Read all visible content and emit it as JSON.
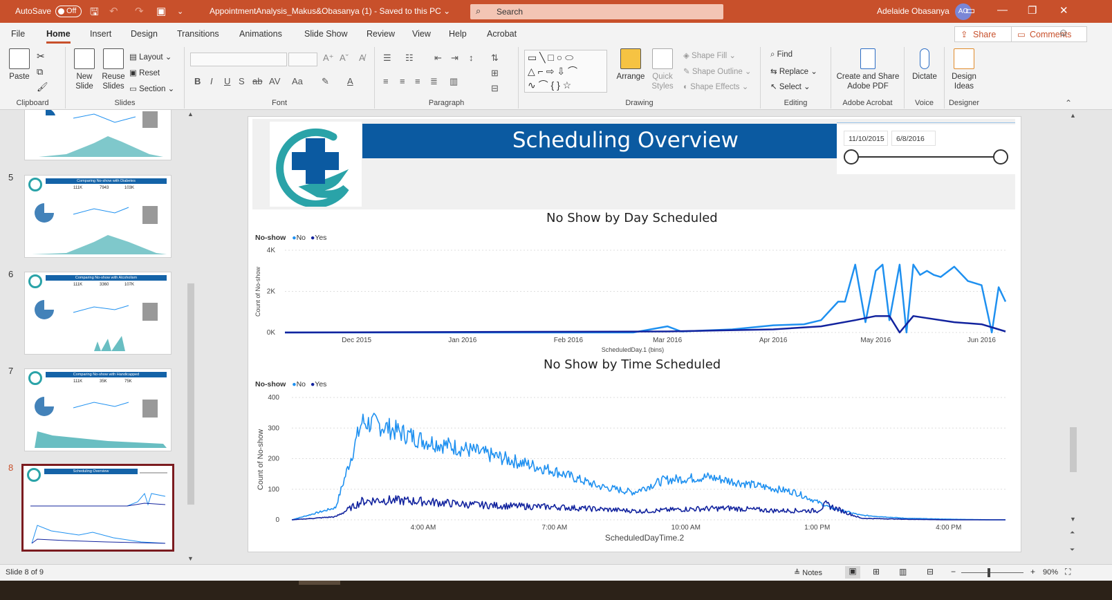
{
  "titlebar": {
    "autosave_label": "AutoSave",
    "toggle_state": "Off",
    "doc_title": "AppointmentAnalysis_Makus&Obasanya (1)  -  Saved to this PC  ⌄",
    "search_placeholder": "Search",
    "user_name": "Adelaide Obasanya",
    "user_initials": "AO"
  },
  "menu": {
    "tabs": [
      "File",
      "Home",
      "Insert",
      "Design",
      "Transitions",
      "Animations",
      "Slide Show",
      "Review",
      "View",
      "Help",
      "Acrobat"
    ],
    "active": "Home",
    "share": "Share",
    "comments": "Comments"
  },
  "ribbon": {
    "clipboard": {
      "label": "Clipboard",
      "paste": "Paste"
    },
    "slides": {
      "label": "Slides",
      "new_slide": "New\nSlide",
      "reuse_slides": "Reuse\nSlides",
      "layout": "Layout ⌄",
      "reset": "Reset",
      "section": "Section ⌄"
    },
    "font": {
      "label": "Font"
    },
    "paragraph": {
      "label": "Paragraph"
    },
    "drawing": {
      "label": "Drawing",
      "arrange": "Arrange",
      "quick_styles": "Quick\nStyles",
      "shape_fill": "Shape Fill ⌄",
      "shape_outline": "Shape Outline ⌄",
      "shape_effects": "Shape Effects ⌄"
    },
    "editing": {
      "label": "Editing",
      "find": "Find",
      "replace": "Replace ⌄",
      "select": "Select ⌄"
    },
    "acrobat": {
      "label": "Adobe Acrobat",
      "create_share": "Create and Share\nAdobe PDF"
    },
    "voice": {
      "label": "Voice",
      "dictate": "Dictate"
    },
    "designer": {
      "label": "Designer",
      "design_ideas": "Design\nIdeas"
    }
  },
  "thumbnails": [
    {
      "num": "5",
      "title": "Comparing No-show with Diabetes",
      "stats": [
        "111K",
        "7943",
        "103K"
      ]
    },
    {
      "num": "6",
      "title": "Comparing No-show with Alcoholism",
      "stats": [
        "111K",
        "3360",
        "107K"
      ]
    },
    {
      "num": "7",
      "title": "Comparing No-show with Handicapped",
      "stats": [
        "111K",
        "35K",
        "75K"
      ]
    },
    {
      "num": "8",
      "title": "Scheduling Overview",
      "stats": []
    }
  ],
  "slide": {
    "title": "Scheduling Overview",
    "date_start": "11/10/2015",
    "date_end": "6/8/2016"
  },
  "colors": {
    "no": "#1e90f0",
    "yes": "#12239e",
    "title_bar": "#0b5aa1",
    "accent": "#c8502b"
  },
  "chart_data": [
    {
      "type": "line",
      "title": "No Show by Day Scheduled",
      "legend_title": "No-show",
      "xlabel": "ScheduledDay.1 (bins)",
      "ylabel": "Count of No-show",
      "x_ticks": [
        "Dec 2015",
        "Jan 2016",
        "Feb 2016",
        "Mar 2016",
        "Apr 2016",
        "May 2016",
        "Jun 2016"
      ],
      "y_ticks": [
        "0K",
        "2K",
        "4K"
      ],
      "ylim": [
        0,
        4000
      ],
      "series": [
        {
          "name": "No",
          "x": [
            "2015-11-10",
            "2016-02-20",
            "2016-03-01",
            "2016-03-05",
            "2016-03-20",
            "2016-04-01",
            "2016-04-10",
            "2016-04-15",
            "2016-04-20",
            "2016-04-22",
            "2016-04-25",
            "2016-04-28",
            "2016-05-01",
            "2016-05-03",
            "2016-05-05",
            "2016-05-08",
            "2016-05-10",
            "2016-05-12",
            "2016-05-14",
            "2016-05-16",
            "2016-05-18",
            "2016-05-20",
            "2016-05-24",
            "2016-05-28",
            "2016-06-01",
            "2016-06-04",
            "2016-06-06",
            "2016-06-08"
          ],
          "values": [
            0,
            0,
            300,
            50,
            150,
            350,
            400,
            600,
            1500,
            1500,
            3300,
            500,
            3000,
            3300,
            600,
            3300,
            0,
            3300,
            2800,
            3000,
            2800,
            2700,
            3200,
            2500,
            2300,
            0,
            2200,
            1500
          ]
        },
        {
          "name": "Yes",
          "x": [
            "2015-11-10",
            "2016-03-01",
            "2016-04-01",
            "2016-04-15",
            "2016-04-25",
            "2016-05-01",
            "2016-05-05",
            "2016-05-08",
            "2016-05-12",
            "2016-05-16",
            "2016-05-24",
            "2016-06-01",
            "2016-06-05",
            "2016-06-08"
          ],
          "values": [
            0,
            50,
            150,
            300,
            600,
            800,
            800,
            0,
            800,
            700,
            500,
            400,
            200,
            50
          ]
        }
      ]
    },
    {
      "type": "line",
      "title": "No Show by Time Scheduled",
      "legend_title": "No-show",
      "xlabel": "ScheduledDayTime.2",
      "ylabel": "Count of No-show",
      "x_ticks": [
        "4:00 AM",
        "7:00 AM",
        "10:00 AM",
        "1:00 PM",
        "4:00 PM"
      ],
      "y_ticks": [
        "0",
        "100",
        "200",
        "300",
        "400"
      ],
      "ylim": [
        0,
        400
      ],
      "series": [
        {
          "name": "No",
          "x_hours": [
            1.0,
            2.0,
            2.6,
            3.0,
            4.0,
            5.0,
            6.0,
            7.0,
            8.0,
            8.8,
            9.5,
            10.5,
            11.5,
            12.5,
            13.3,
            14.0,
            15.0,
            16.0,
            17.0,
            17.3
          ],
          "values": [
            0,
            40,
            320,
            310,
            260,
            230,
            195,
            160,
            110,
            90,
            130,
            140,
            115,
            90,
            40,
            15,
            5,
            2,
            0,
            0
          ]
        },
        {
          "name": "Yes",
          "x_hours": [
            1.0,
            2.0,
            2.6,
            3.0,
            4.0,
            5.0,
            6.0,
            7.0,
            8.0,
            9.0,
            10.0,
            11.0,
            12.0,
            13.0,
            13.2,
            14.0,
            15.0,
            16.0,
            17.0,
            17.3
          ],
          "values": [
            0,
            10,
            60,
            65,
            60,
            50,
            45,
            42,
            35,
            28,
            35,
            38,
            30,
            30,
            50,
            5,
            2,
            0,
            0,
            0
          ]
        }
      ]
    }
  ],
  "status": {
    "slide_count": "Slide 8 of 9",
    "notes": "Notes",
    "zoom": "90%"
  }
}
